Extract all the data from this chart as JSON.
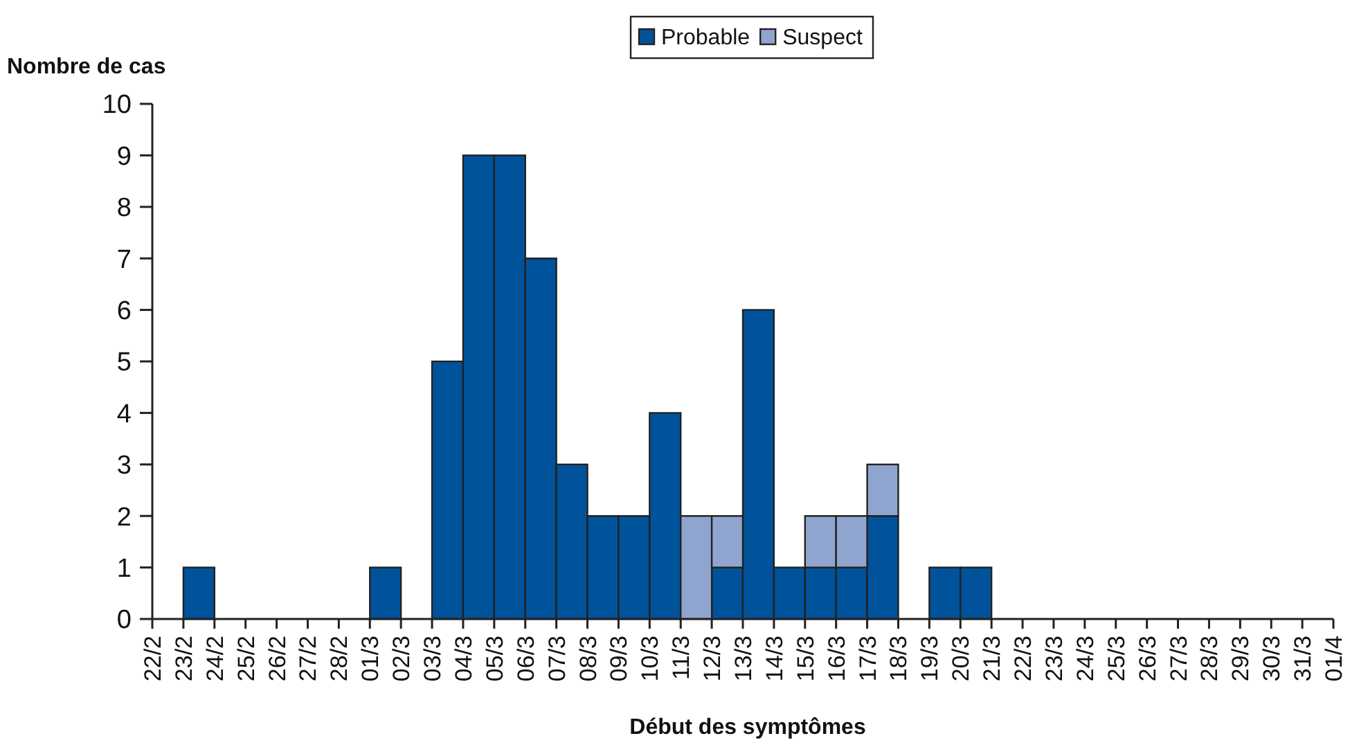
{
  "chart_data": {
    "type": "bar",
    "stacked": true,
    "xlabel": "Début des symptômes",
    "ylabel": "Nombre de cas",
    "categories": [
      "22/2",
      "23/2",
      "24/2",
      "25/2",
      "26/2",
      "27/2",
      "28/2",
      "01/3",
      "02/3",
      "03/3",
      "04/3",
      "05/3",
      "06/3",
      "07/3",
      "08/3",
      "09/3",
      "10/3",
      "11/3",
      "12/3",
      "13/3",
      "14/3",
      "15/3",
      "16/3",
      "17/3",
      "18/3",
      "19/3",
      "20/3",
      "21/3",
      "22/3",
      "23/3",
      "24/3",
      "25/3",
      "26/3",
      "27/3",
      "28/3",
      "29/3",
      "30/3",
      "31/3",
      "01/4"
    ],
    "series": [
      {
        "name": "Probable",
        "color": "#00539b",
        "values": [
          0,
          1,
          0,
          0,
          0,
          0,
          0,
          1,
          0,
          5,
          9,
          9,
          7,
          3,
          2,
          2,
          4,
          0,
          1,
          6,
          1,
          1,
          1,
          2,
          0,
          1,
          1,
          0,
          0,
          0,
          0,
          0,
          0,
          0,
          0,
          0,
          0,
          0,
          0
        ]
      },
      {
        "name": "Suspect",
        "color": "#8fa5cf",
        "values": [
          0,
          0,
          0,
          0,
          0,
          0,
          0,
          0,
          0,
          0,
          0,
          0,
          0,
          0,
          0,
          0,
          0,
          2,
          1,
          0,
          0,
          1,
          1,
          1,
          0,
          0,
          0,
          0,
          0,
          0,
          0,
          0,
          0,
          0,
          0,
          0,
          0,
          0,
          0
        ]
      }
    ],
    "ylim": [
      0,
      10
    ],
    "yticks": [
      0,
      1,
      2,
      3,
      4,
      5,
      6,
      7,
      8,
      9,
      10
    ],
    "grid": false,
    "legend": "top"
  }
}
